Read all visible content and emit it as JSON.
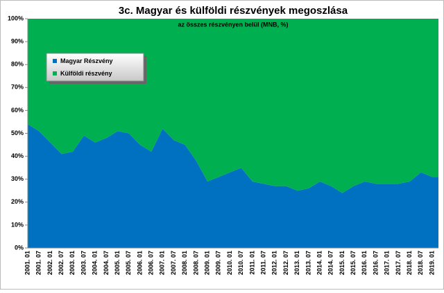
{
  "chart_data": {
    "type": "stacked-area",
    "title": "3c. Magyar és külföldi részvények megoszlása",
    "subtitle": "az összes részvényen belül (MNB, %)",
    "categories": [
      "2001. 01",
      "2001. 07",
      "2002. 01",
      "2002. 07",
      "2003. 01",
      "2003. 07",
      "2004. 01",
      "2004. 07",
      "2005. 01",
      "2005. 07",
      "2006. 01",
      "2006. 07",
      "2007. 01",
      "2007. 07",
      "2008. 01",
      "2008. 07",
      "2009. 01",
      "2009. 07",
      "2010. 01",
      "2010. 07",
      "2011. 01",
      "2011. 07",
      "2012. 01",
      "2012. 07",
      "2013. 01",
      "2013. 07",
      "2014. 01",
      "2014. 07",
      "2015. 01",
      "2015. 07",
      "2016. 01",
      "2016. 07",
      "2017. 01",
      "2017. 07",
      "2018. 01",
      "2018. 07",
      "2019. 01"
    ],
    "series": [
      {
        "name": "Magyar Részvény",
        "color": "#0070c0",
        "values": [
          54,
          51,
          46,
          41,
          42,
          49,
          46,
          48,
          51,
          50,
          45,
          42,
          52,
          47,
          45,
          38,
          29,
          31,
          33,
          35,
          29,
          28,
          27,
          27,
          25,
          26,
          29,
          27,
          24,
          27,
          29,
          28,
          28,
          28,
          29,
          33,
          31
        ]
      },
      {
        "name": "Külföldi részvény",
        "color": "#00b050",
        "values": [
          46,
          49,
          54,
          59,
          58,
          51,
          54,
          52,
          49,
          50,
          55,
          58,
          48,
          53,
          55,
          62,
          71,
          69,
          67,
          65,
          71,
          72,
          73,
          73,
          75,
          74,
          71,
          73,
          76,
          73,
          71,
          72,
          72,
          72,
          71,
          67,
          69
        ]
      }
    ],
    "ylim": [
      0,
      100
    ],
    "yticks": [
      {
        "value": 0,
        "label": "0%"
      },
      {
        "value": 10,
        "label": "10%"
      },
      {
        "value": 20,
        "label": "20%"
      },
      {
        "value": 30,
        "label": "30%"
      },
      {
        "value": 40,
        "label": "40%"
      },
      {
        "value": 50,
        "label": "50%"
      },
      {
        "value": 60,
        "label": "60%"
      },
      {
        "value": 70,
        "label": "70%"
      },
      {
        "value": 80,
        "label": "80%"
      },
      {
        "value": 90,
        "label": "90%"
      },
      {
        "value": 100,
        "label": "100%"
      }
    ],
    "grid": false
  }
}
